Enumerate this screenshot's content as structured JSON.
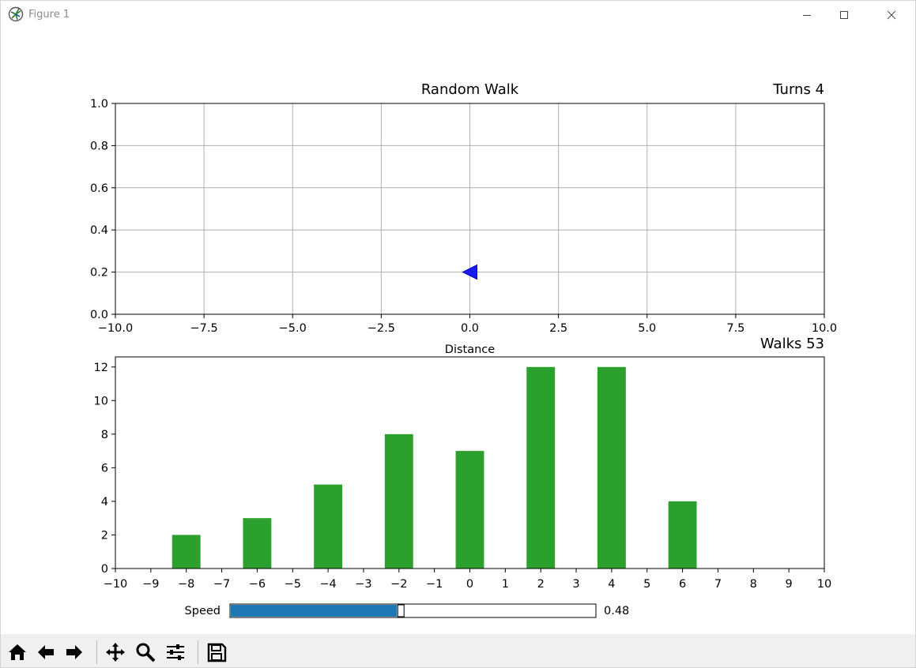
{
  "window": {
    "title": "Figure 1",
    "controls": [
      "minimize",
      "maximize",
      "close"
    ]
  },
  "top_axes": {
    "title": "Random Walk",
    "right_title": "Turns 4",
    "xlabel": "Distance",
    "xlim": [
      -10.0,
      10.0
    ],
    "ylim": [
      0.0,
      1.0
    ],
    "xticks": [
      "−10.0",
      "−7.5",
      "−5.0",
      "−2.5",
      "0.0",
      "2.5",
      "5.0",
      "7.5",
      "10.0"
    ],
    "yticks": [
      "0.0",
      "0.2",
      "0.4",
      "0.6",
      "0.8",
      "1.0"
    ],
    "grid": true,
    "marker": {
      "x": 0.0,
      "y": 0.2,
      "shape": "left-triangle",
      "color": "#1a1af0"
    }
  },
  "chart_data": {
    "type": "bar",
    "right_title": "Walks 53",
    "x": [
      -8,
      -6,
      -4,
      -2,
      0,
      2,
      4,
      6
    ],
    "values": [
      2,
      3,
      5,
      8,
      7,
      12,
      12,
      4
    ],
    "xlim": [
      -10,
      10
    ],
    "ylim": [
      0,
      12.6
    ],
    "xticks": [
      "−10",
      "−9",
      "−8",
      "−7",
      "−6",
      "−5",
      "−4",
      "−3",
      "−2",
      "−1",
      "0",
      "1",
      "2",
      "3",
      "4",
      "5",
      "6",
      "7",
      "8",
      "9",
      "10"
    ],
    "yticks": [
      "0",
      "2",
      "4",
      "6",
      "8",
      "10",
      "12"
    ],
    "color": "#2ca02c",
    "grid": false
  },
  "slider": {
    "label": "Speed",
    "value": 0.48,
    "value_text": "0.48",
    "fill_color": "#1f77b4"
  },
  "toolbar": {
    "buttons": [
      "home-icon",
      "back-icon",
      "forward-icon",
      "pan-icon",
      "zoom-icon",
      "configure-subplots-icon",
      "save-icon"
    ]
  }
}
